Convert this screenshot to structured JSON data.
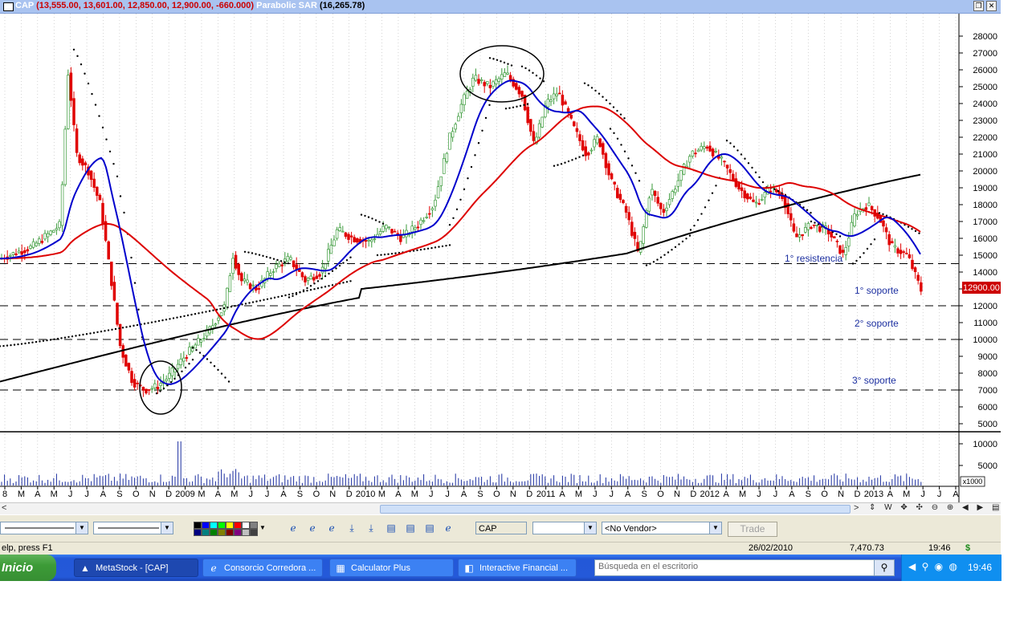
{
  "window": {
    "symbol": "CAP",
    "ohlc": "(13,555.00, 13,601.00, 12,850.00, 12,900.00, -660.000)",
    "indicator_name": "Parabolic SAR",
    "indicator_value": "(16,265.78)",
    "restore_glyph": "❐",
    "close_glyph": "✕"
  },
  "chart": {
    "price_axis": [
      "28000",
      "27000",
      "26000",
      "25000",
      "24000",
      "23000",
      "22000",
      "21000",
      "20000",
      "19000",
      "18000",
      "17000",
      "16000",
      "15000",
      "14000",
      "13000",
      "12000",
      "11000",
      "10000",
      "9000",
      "8000",
      "7000",
      "6000",
      "5000"
    ],
    "last_price_label": "12900.00",
    "volume_axis": [
      "10000",
      "5000"
    ],
    "volume_unit": "x1000",
    "time_labels": [
      "8",
      "M",
      "A",
      "M",
      "J",
      "J",
      "A",
      "S",
      "O",
      "N",
      "D",
      "2009",
      "M",
      "A",
      "M",
      "J",
      "J",
      "A",
      "S",
      "O",
      "N",
      "D",
      "2010",
      "M",
      "A",
      "M",
      "J",
      "J",
      "A",
      "S",
      "O",
      "N",
      "D",
      "2011",
      "A",
      "M",
      "J",
      "J",
      "A",
      "S",
      "O",
      "N",
      "D",
      "2012",
      "A",
      "M",
      "J",
      "J",
      "A",
      "S",
      "O",
      "N",
      "D",
      "2013",
      "A",
      "M",
      "J",
      "J",
      "A"
    ],
    "annotations": {
      "resistance_1": "1° resistencia",
      "support_1": "1° soporte",
      "support_2": "2° soporte",
      "support_3": "3° soporte"
    },
    "colors": {
      "bull": "#3a9a3a",
      "bear": "#e00000",
      "ma_fast": "#0000cc",
      "ma_mid": "#dd0000",
      "ma_slow": "#000000",
      "annotation": "#1c2fa0"
    }
  },
  "scrollbar": {
    "left_arrow": "<",
    "right_arrow": ">",
    "nav_icons": "⇕ W ✥ ✣ ⊖ ⊕ ◀ ▶ ▤"
  },
  "toolbar": {
    "symbol_field": "CAP",
    "vendor_select": "<No Vendor>",
    "trade_button": "Trade",
    "palette": [
      "#000000",
      "#0000ff",
      "#00ffff",
      "#00ff00",
      "#ffff00",
      "#ff0000",
      "#ffffff",
      "#808080",
      "#000080",
      "#008080",
      "#008000",
      "#808000",
      "#800000",
      "#800080",
      "#c0c0c0",
      "#404040"
    ]
  },
  "statusbar": {
    "help": "elp, press F1",
    "date": "26/02/2010",
    "value": "7,470.73",
    "time": "19:46",
    "dollar": "$"
  },
  "taskbar": {
    "start": "Inicio",
    "tasks": [
      "MetaStock - [CAP]",
      "Consorcio Corredora ...",
      "Calculator Plus",
      "Interactive Financial ..."
    ],
    "search_placeholder": "Búsqueda en el escritorio",
    "clock": "19:46"
  }
}
